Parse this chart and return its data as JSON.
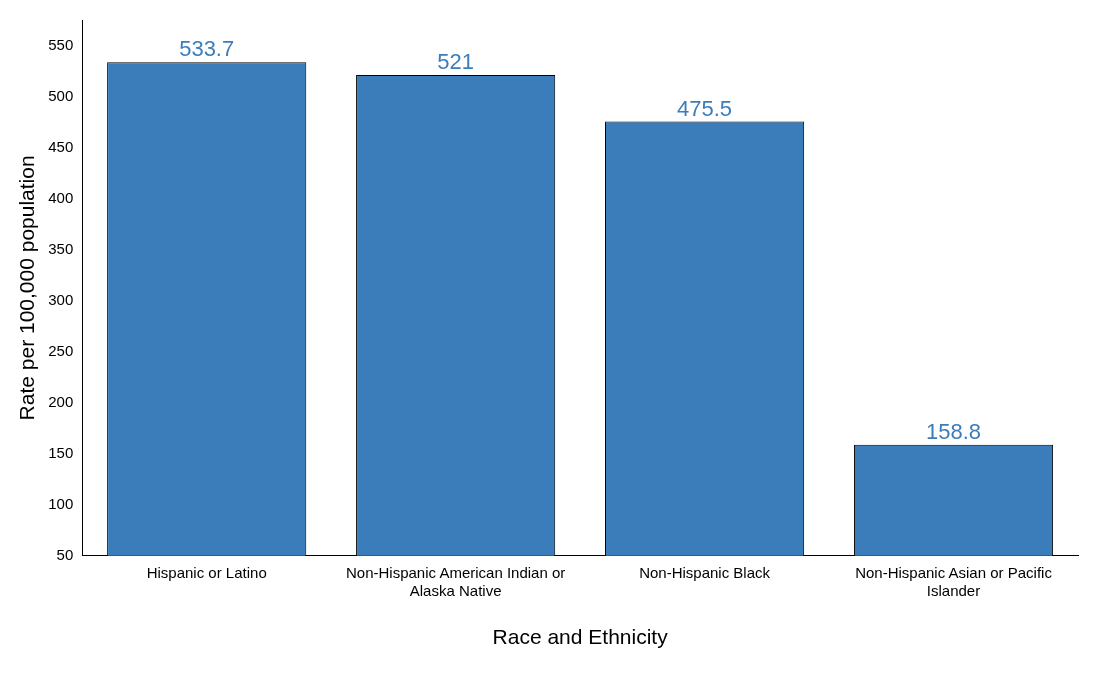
{
  "chart_data": {
    "type": "bar",
    "xlabel": "Race and Ethnicity",
    "ylabel": "Rate per 100,000 population",
    "categories": [
      "Hispanic or Latino",
      "Non-Hispanic American Indian or Alaska Native",
      "Non-Hispanic Black",
      "Non-Hispanic Asian or Pacific Islander"
    ],
    "values": [
      533.7,
      521,
      475.5,
      158.8
    ],
    "color": "#3a7dba",
    "ylim": [
      50,
      575
    ],
    "yticks": [
      50,
      100,
      150,
      200,
      250,
      300,
      350,
      400,
      450,
      500,
      550
    ],
    "data_labels": true,
    "grid": false,
    "legend": false
  }
}
